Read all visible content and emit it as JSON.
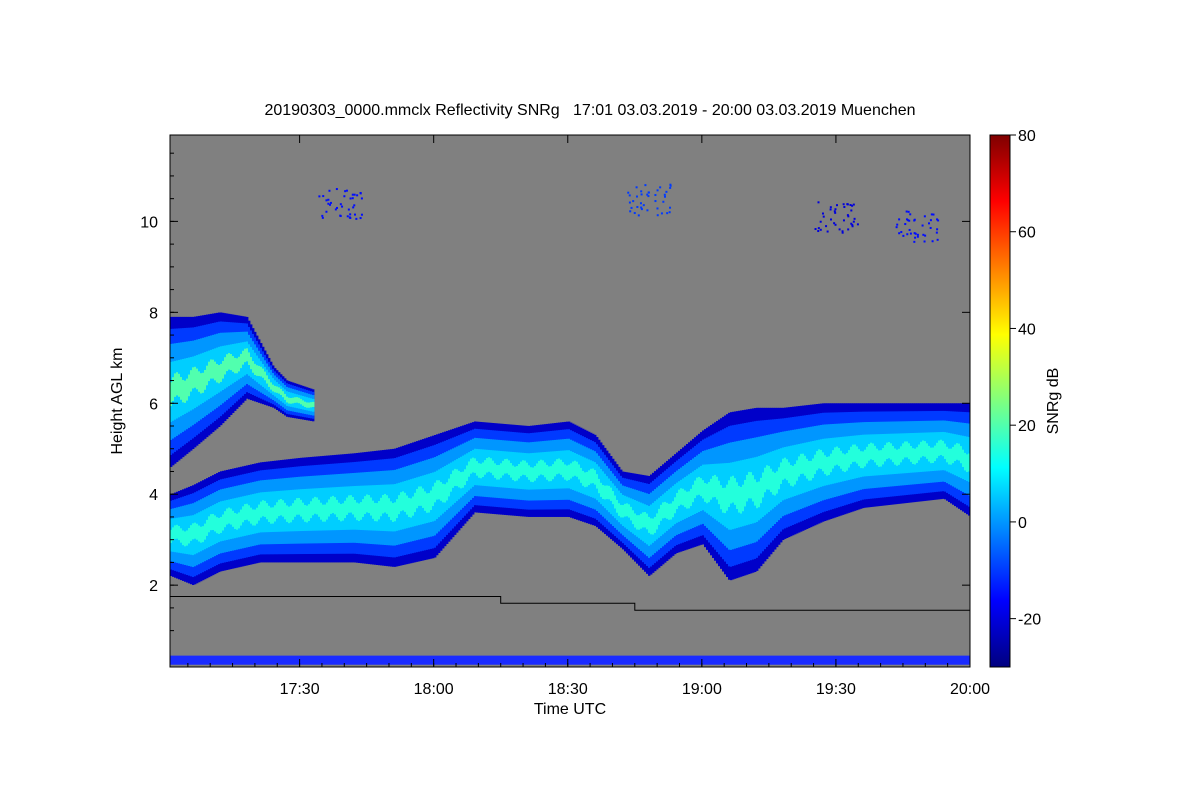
{
  "chart_data": {
    "type": "heatmap",
    "title": "20190303_0000.mmclx Reflectivity SNRg   17:01 03.03.2019 - 20:00 03.03.2019 Muenchen",
    "xlabel": "Time UTC",
    "ylabel": "Height AGL km",
    "x_range_hours": [
      17.0167,
      20.0
    ],
    "y_range_km": [
      0.2,
      11.9
    ],
    "x_ticks": [
      {
        "label": "17:30",
        "value": 17.5
      },
      {
        "label": "18:00",
        "value": 18.0
      },
      {
        "label": "18:30",
        "value": 18.5
      },
      {
        "label": "19:00",
        "value": 19.0
      },
      {
        "label": "19:30",
        "value": 19.5
      },
      {
        "label": "20:00",
        "value": 20.0
      }
    ],
    "y_ticks": [
      {
        "label": "2",
        "value": 2
      },
      {
        "label": "4",
        "value": 4
      },
      {
        "label": "6",
        "value": 6
      },
      {
        "label": "8",
        "value": 8
      },
      {
        "label": "10",
        "value": 10
      }
    ],
    "colorbar": {
      "label": "SNRg dB",
      "range": [
        -30,
        80
      ],
      "colors": [
        "#00007f",
        "#0000ff",
        "#007fff",
        "#00ffff",
        "#7fff7f",
        "#ffff00",
        "#ff7f00",
        "#ff0000",
        "#7f0000"
      ],
      "ticks": [
        {
          "label": "80",
          "value": 80
        },
        {
          "label": "60",
          "value": 60
        },
        {
          "label": "40",
          "value": 40
        },
        {
          "label": "20",
          "value": 20
        },
        {
          "label": "0",
          "value": 0
        },
        {
          "label": "-20",
          "value": -20
        }
      ]
    },
    "background_color": "#808080",
    "snr_threshold_line": {
      "color": "#000000",
      "points": [
        [
          17.0167,
          1.75
        ],
        [
          18.25,
          1.75
        ],
        [
          18.25,
          1.6
        ],
        [
          18.75,
          1.6
        ],
        [
          18.75,
          1.45
        ],
        [
          20.0,
          1.45
        ]
      ]
    },
    "cloud_layers": [
      {
        "name": "lower-cloud",
        "times": [
          17.0167,
          17.1,
          17.2,
          17.35,
          17.5,
          17.7,
          17.85,
          18.0,
          18.15,
          18.35,
          18.5,
          18.6,
          18.7,
          18.8,
          18.9,
          19.0,
          19.1,
          19.2,
          19.3,
          19.45,
          19.6,
          19.75,
          19.9,
          20.0
        ],
        "top_km": [
          4.0,
          4.2,
          4.5,
          4.7,
          4.8,
          4.9,
          5.0,
          5.3,
          5.6,
          5.5,
          5.6,
          5.3,
          4.5,
          4.4,
          4.9,
          5.4,
          5.8,
          5.9,
          5.9,
          6.0,
          6.0,
          6.0,
          6.0,
          6.0
        ],
        "base_km": [
          2.2,
          2.0,
          2.3,
          2.5,
          2.5,
          2.5,
          2.4,
          2.6,
          3.6,
          3.5,
          3.5,
          3.3,
          2.8,
          2.2,
          2.7,
          2.9,
          2.1,
          2.3,
          3.0,
          3.4,
          3.7,
          3.8,
          3.9,
          3.5
        ],
        "core_snr_db": 15
      },
      {
        "name": "upper-cloud",
        "times": [
          17.0167,
          17.1,
          17.2,
          17.3,
          17.4,
          17.45,
          17.55
        ],
        "top_km": [
          7.9,
          7.9,
          8.0,
          7.9,
          6.8,
          6.5,
          6.3
        ],
        "base_km": [
          4.6,
          5.0,
          5.5,
          6.1,
          5.9,
          5.7,
          5.6
        ],
        "core_snr_db": 20
      }
    ],
    "cirrus_patches": [
      {
        "time": 17.65,
        "height_km": 10.4,
        "snr_db": -15
      },
      {
        "time": 18.8,
        "height_km": 10.5,
        "snr_db": -10
      },
      {
        "time": 19.5,
        "height_km": 10.1,
        "snr_db": -20
      },
      {
        "time": 19.8,
        "height_km": 9.9,
        "snr_db": -15
      }
    ]
  }
}
